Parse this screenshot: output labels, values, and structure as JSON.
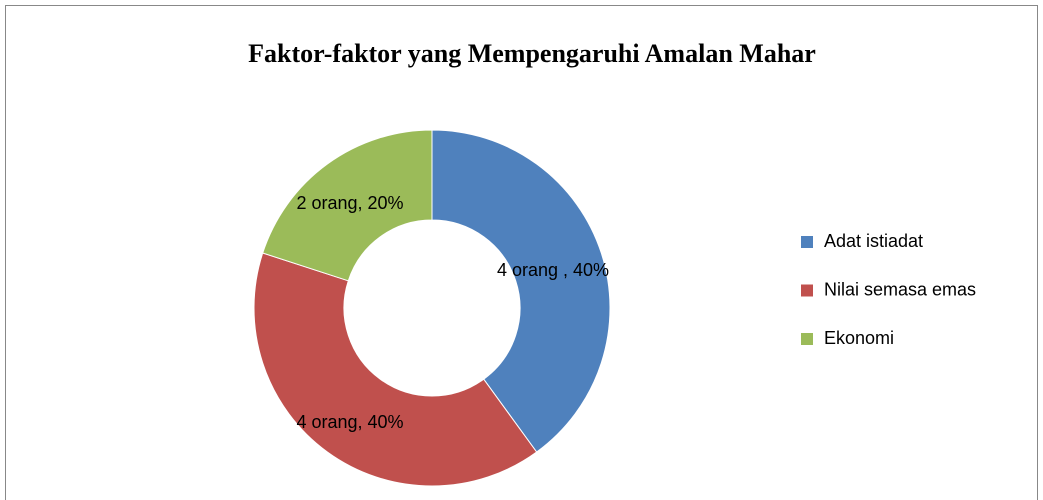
{
  "chart_data": {
    "type": "donut",
    "title": "Faktor-faktor yang Mempengaruhi Amalan Mahar",
    "categories": [
      "Adat istiadat",
      "Nilai semasa emas",
      "Ekonomi"
    ],
    "values": [
      4,
      4,
      2
    ],
    "value_labels": [
      "4 orang , 40%",
      "4 orang, 40%",
      "2 orang, 20%"
    ],
    "colors": [
      "#4f81bd",
      "#c0504d",
      "#9bbb59"
    ],
    "legend": "right"
  }
}
